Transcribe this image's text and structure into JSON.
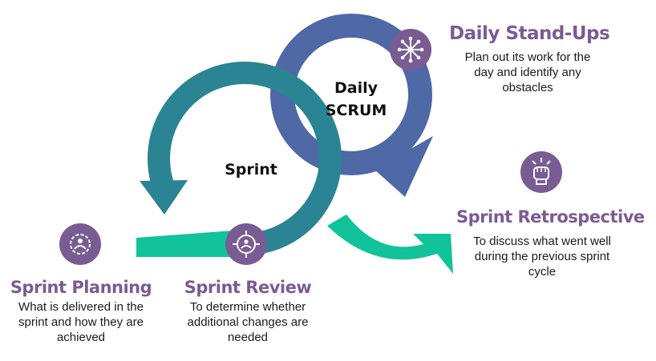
{
  "colors": {
    "teal_loop": "#2a8494",
    "blue_loop": "#4f68a6",
    "green_bar": "#12c29a",
    "purple_icon": "#7a5c94",
    "title_text": "#7a5c94"
  },
  "center_labels": {
    "sprint": "Sprint",
    "daily_line1": "Daily",
    "daily_line2": "SCRUM"
  },
  "steps": {
    "planning": {
      "icon": "gear-person-icon",
      "title": "Sprint Planning",
      "description": "What is delivered in the sprint and how they are achieved"
    },
    "review": {
      "icon": "target-person-icon",
      "title": "Sprint Review",
      "description": "To determine whether additional changes are needed"
    },
    "standups": {
      "icon": "network-icon",
      "title": "Daily Stand-Ups",
      "description": "Plan out its work for the day and identify any obstacles"
    },
    "retrospective": {
      "icon": "raised-fist-icon",
      "title": "Sprint Retrospective",
      "description": "To discuss what went well during the previous sprint cycle"
    }
  }
}
